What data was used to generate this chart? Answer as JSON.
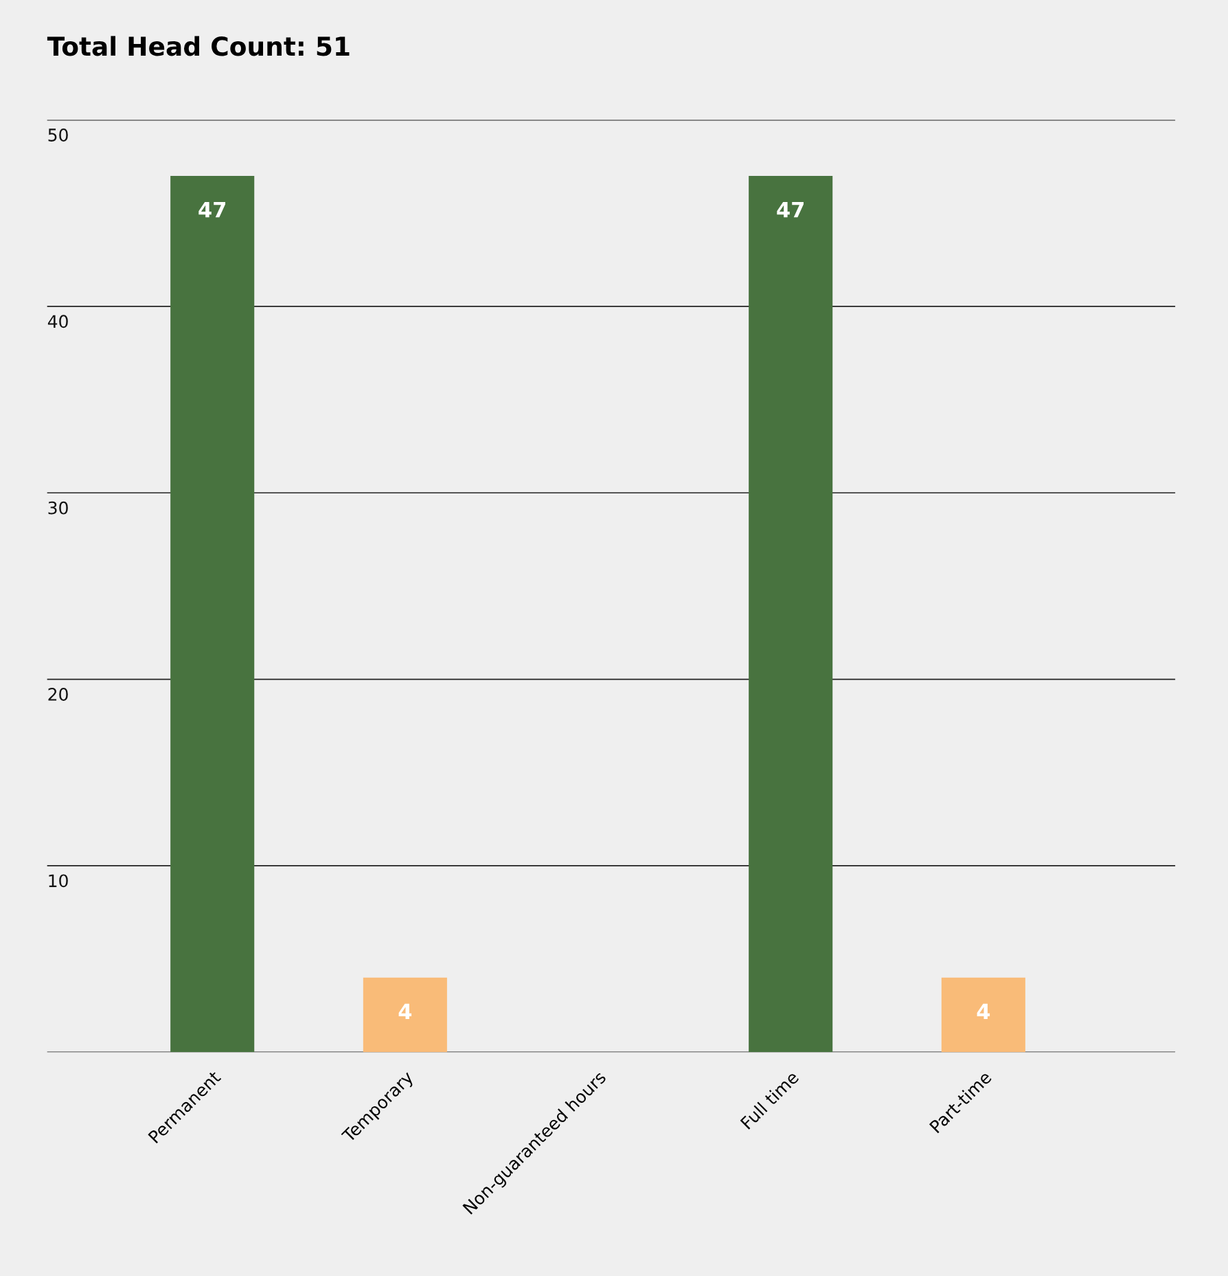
{
  "chart_data": {
    "type": "bar",
    "title": "Total Head Count: 51",
    "categories": [
      "Permanent",
      "Temporary",
      "Non-guaranteed hours",
      "Full time",
      "Part-time"
    ],
    "values": [
      47,
      4,
      0,
      47,
      4
    ],
    "colors": [
      "#48733f",
      "#f9bb78",
      "#f9bb78",
      "#48733f",
      "#f9bb78"
    ],
    "value_labels": [
      "47",
      "4",
      null,
      "47",
      "4"
    ],
    "ylim": [
      0,
      50
    ],
    "yticks": [
      {
        "value": 0,
        "label": null
      },
      10,
      20,
      30,
      40,
      50
    ],
    "grid": "y",
    "legend": false
  }
}
